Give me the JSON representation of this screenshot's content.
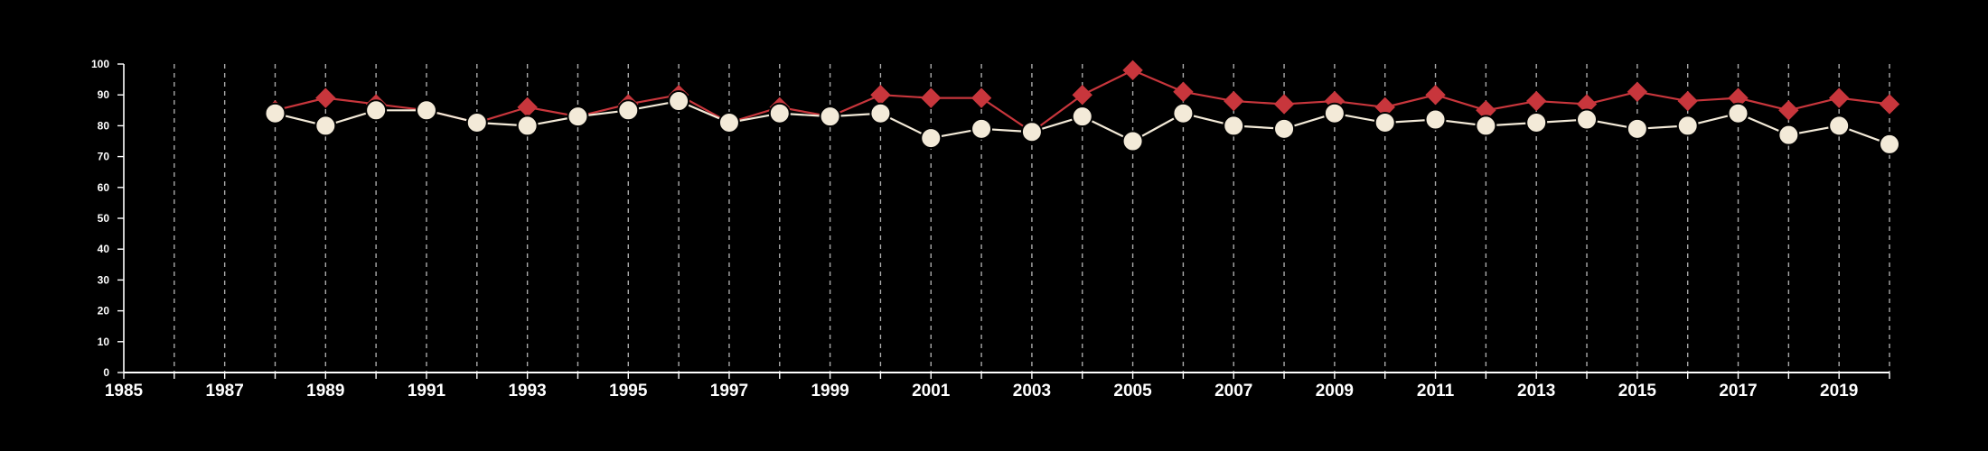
{
  "chart_data": {
    "type": "line",
    "title": "",
    "xlabel": "",
    "ylabel": "",
    "xlim": [
      1985,
      2020
    ],
    "ylim": [
      0,
      100
    ],
    "x_ticks": [
      1985,
      1987,
      1989,
      1991,
      1993,
      1995,
      1997,
      1999,
      2001,
      2003,
      2005,
      2007,
      2009,
      2011,
      2013,
      2015,
      2017,
      2019
    ],
    "y_ticks": [
      0,
      10,
      20,
      30,
      40,
      50,
      60,
      70,
      80,
      90,
      100
    ],
    "vertical_grid": "dashed",
    "legend": "none",
    "series": [
      {
        "marker": "diamond",
        "color": "#c8363c",
        "points": [
          {
            "x": 1988,
            "y": 85
          },
          {
            "x": 1989,
            "y": 89
          },
          {
            "x": 1990,
            "y": 87
          },
          {
            "x": 1991,
            "y": 85
          },
          {
            "x": 1992,
            "y": 81
          },
          {
            "x": 1993,
            "y": 86
          },
          {
            "x": 1994,
            "y": 83
          },
          {
            "x": 1995,
            "y": 87
          },
          {
            "x": 1996,
            "y": 90
          },
          {
            "x": 1997,
            "y": 81
          },
          {
            "x": 1998,
            "y": 86
          },
          {
            "x": 1999,
            "y": 83
          },
          {
            "x": 2000,
            "y": 90
          },
          {
            "x": 2001,
            "y": 89
          },
          {
            "x": 2002,
            "y": 89
          },
          {
            "x": 2003,
            "y": 78
          },
          {
            "x": 2004,
            "y": 90
          },
          {
            "x": 2005,
            "y": 98
          },
          {
            "x": 2006,
            "y": 91
          },
          {
            "x": 2007,
            "y": 88
          },
          {
            "x": 2008,
            "y": 87
          },
          {
            "x": 2009,
            "y": 88
          },
          {
            "x": 2010,
            "y": 86
          },
          {
            "x": 2011,
            "y": 90
          },
          {
            "x": 2012,
            "y": 85
          },
          {
            "x": 2013,
            "y": 88
          },
          {
            "x": 2014,
            "y": 87
          },
          {
            "x": 2015,
            "y": 91
          },
          {
            "x": 2016,
            "y": 88
          },
          {
            "x": 2017,
            "y": 89
          },
          {
            "x": 2018,
            "y": 85
          },
          {
            "x": 2019,
            "y": 89
          },
          {
            "x": 2020,
            "y": 87
          }
        ]
      },
      {
        "marker": "circle",
        "color": "#f3ead8",
        "points": [
          {
            "x": 1988,
            "y": 84
          },
          {
            "x": 1989,
            "y": 80
          },
          {
            "x": 1990,
            "y": 85
          },
          {
            "x": 1991,
            "y": 85
          },
          {
            "x": 1992,
            "y": 81
          },
          {
            "x": 1993,
            "y": 80
          },
          {
            "x": 1994,
            "y": 83
          },
          {
            "x": 1995,
            "y": 85
          },
          {
            "x": 1996,
            "y": 88
          },
          {
            "x": 1997,
            "y": 81
          },
          {
            "x": 1998,
            "y": 84
          },
          {
            "x": 1999,
            "y": 83
          },
          {
            "x": 2000,
            "y": 84
          },
          {
            "x": 2001,
            "y": 76
          },
          {
            "x": 2002,
            "y": 79
          },
          {
            "x": 2003,
            "y": 78
          },
          {
            "x": 2004,
            "y": 83
          },
          {
            "x": 2005,
            "y": 75
          },
          {
            "x": 2006,
            "y": 84
          },
          {
            "x": 2007,
            "y": 80
          },
          {
            "x": 2008,
            "y": 79
          },
          {
            "x": 2009,
            "y": 84
          },
          {
            "x": 2010,
            "y": 81
          },
          {
            "x": 2011,
            "y": 82
          },
          {
            "x": 2012,
            "y": 80
          },
          {
            "x": 2013,
            "y": 81
          },
          {
            "x": 2014,
            "y": 82
          },
          {
            "x": 2015,
            "y": 79
          },
          {
            "x": 2016,
            "y": 80
          },
          {
            "x": 2017,
            "y": 84
          },
          {
            "x": 2018,
            "y": 77
          },
          {
            "x": 2019,
            "y": 80
          },
          {
            "x": 2020,
            "y": 74
          }
        ]
      }
    ]
  },
  "colors": {
    "background": "#000000",
    "axis": "#ffffff",
    "grid": "#c8c8c8"
  }
}
